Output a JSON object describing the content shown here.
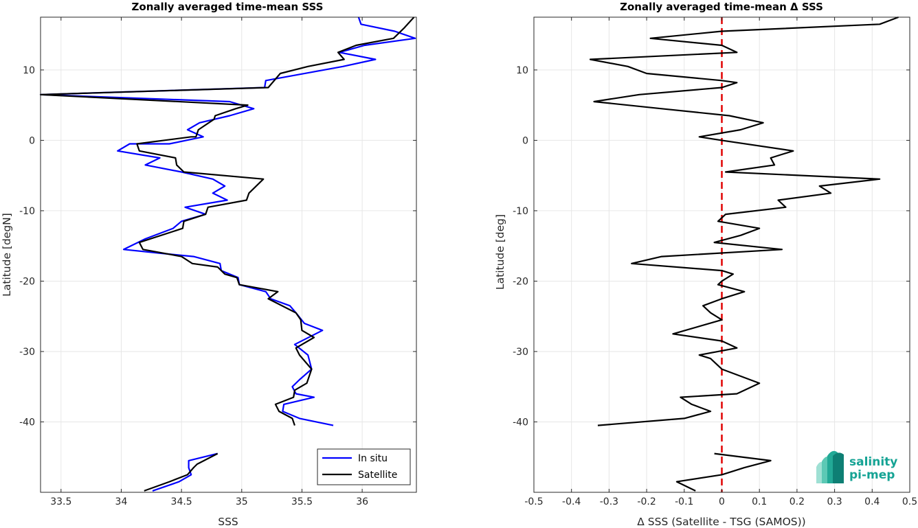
{
  "chart_data": [
    {
      "type": "line",
      "title": "Zonally averaged time-mean SSS",
      "xlabel": "SSS",
      "ylabel": "Latitude [degN]",
      "xlim": [
        33.33,
        36.45
      ],
      "ylim": [
        -50,
        17.5
      ],
      "xticks": [
        33.5,
        34,
        34.5,
        35,
        35.5,
        36
      ],
      "yticks": [
        10,
        0,
        -10,
        -20,
        -30,
        -40
      ],
      "grid": true,
      "legend": "bottom-right",
      "series": [
        {
          "name": "In situ",
          "color": "#0000ff",
          "segments": [
            [
              [
                35.97,
                17.5
              ],
              [
                35.99,
                16.5
              ],
              [
                36.27,
                15.5
              ],
              [
                36.44,
                14.5
              ],
              [
                36.02,
                13.5
              ],
              [
                35.81,
                12.5
              ],
              [
                36.11,
                11.5
              ],
              [
                35.84,
                10.5
              ],
              [
                35.2,
                8.5
              ],
              [
                35.19,
                7.5
              ],
              [
                33.33,
                6.5
              ],
              [
                34.9,
                5.5
              ],
              [
                35.1,
                4.5
              ],
              [
                34.9,
                3.5
              ],
              [
                34.65,
                2.5
              ],
              [
                34.55,
                1.5
              ],
              [
                34.68,
                0.5
              ],
              [
                34.4,
                -0.5
              ],
              [
                34.07,
                -0.5
              ],
              [
                33.97,
                -1.5
              ],
              [
                34.32,
                -2.5
              ],
              [
                34.2,
                -3.5
              ],
              [
                34.5,
                -4.5
              ],
              [
                34.76,
                -5.5
              ],
              [
                34.86,
                -6.5
              ],
              [
                34.76,
                -7.5
              ],
              [
                34.88,
                -8.5
              ],
              [
                34.53,
                -9.5
              ],
              [
                34.7,
                -10.5
              ],
              [
                34.5,
                -11.5
              ],
              [
                34.43,
                -12.5
              ],
              [
                34.2,
                -14.0
              ],
              [
                34.02,
                -15.5
              ],
              [
                34.3,
                -16.0
              ],
              [
                34.6,
                -16.5
              ],
              [
                34.82,
                -17.5
              ],
              [
                34.83,
                -18.5
              ],
              [
                34.97,
                -19.5
              ],
              [
                34.98,
                -20.5
              ],
              [
                35.2,
                -21.5
              ],
              [
                35.24,
                -22.5
              ],
              [
                35.4,
                -23.5
              ],
              [
                35.45,
                -24.5
              ],
              [
                35.52,
                -26.0
              ],
              [
                35.67,
                -27.0
              ],
              [
                35.44,
                -29.0
              ],
              [
                35.55,
                -30.5
              ],
              [
                35.58,
                -32.5
              ],
              [
                35.48,
                -34.0
              ],
              [
                35.42,
                -35.0
              ],
              [
                35.45,
                -36.0
              ],
              [
                35.6,
                -36.5
              ],
              [
                35.35,
                -37.5
              ],
              [
                35.34,
                -38.5
              ],
              [
                35.48,
                -39.5
              ],
              [
                35.76,
                -40.5
              ]
            ],
            [
              [
                34.8,
                -44.5
              ],
              [
                34.56,
                -45.5
              ],
              [
                34.56,
                -46.5
              ],
              [
                34.58,
                -47.5
              ],
              [
                34.48,
                -48.5
              ],
              [
                34.26,
                -49.8
              ]
            ]
          ]
        },
        {
          "name": "Satellite",
          "color": "#000000",
          "segments": [
            [
              [
                36.43,
                17.5
              ],
              [
                36.35,
                16.0
              ],
              [
                36.26,
                14.5
              ],
              [
                35.95,
                13.5
              ],
              [
                35.8,
                12.5
              ],
              [
                35.85,
                11.5
              ],
              [
                35.55,
                10.5
              ],
              [
                35.32,
                9.5
              ],
              [
                35.22,
                7.5
              ],
              [
                33.33,
                6.5
              ],
              [
                35.05,
                5.0
              ],
              [
                34.95,
                4.5
              ],
              [
                34.78,
                3.5
              ],
              [
                34.77,
                3.0
              ],
              [
                34.64,
                1.5
              ],
              [
                34.62,
                0.5
              ],
              [
                34.58,
                0.5
              ],
              [
                34.13,
                -0.5
              ],
              [
                34.15,
                -1.5
              ],
              [
                34.45,
                -2.5
              ],
              [
                34.46,
                -3.5
              ],
              [
                34.52,
                -4.5
              ],
              [
                35.18,
                -5.5
              ],
              [
                35.06,
                -7.5
              ],
              [
                35.04,
                -8.5
              ],
              [
                34.72,
                -9.5
              ],
              [
                34.7,
                -10.5
              ],
              [
                34.52,
                -11.5
              ],
              [
                34.51,
                -12.5
              ],
              [
                34.15,
                -14.5
              ],
              [
                34.18,
                -15.5
              ],
              [
                34.5,
                -16.5
              ],
              [
                34.59,
                -17.5
              ],
              [
                34.8,
                -18.0
              ],
              [
                34.86,
                -19.0
              ],
              [
                34.96,
                -19.5
              ],
              [
                34.98,
                -20.5
              ],
              [
                35.3,
                -21.5
              ],
              [
                35.22,
                -22.5
              ],
              [
                35.45,
                -24.5
              ],
              [
                35.49,
                -25.5
              ],
              [
                35.5,
                -27.0
              ],
              [
                35.6,
                -28.0
              ],
              [
                35.45,
                -29.5
              ],
              [
                35.48,
                -30.5
              ],
              [
                35.58,
                -32.5
              ],
              [
                35.54,
                -34.5
              ],
              [
                35.44,
                -35.5
              ],
              [
                35.43,
                -36.5
              ],
              [
                35.28,
                -37.5
              ],
              [
                35.31,
                -38.5
              ],
              [
                35.42,
                -39.5
              ],
              [
                35.44,
                -40.5
              ]
            ],
            [
              [
                34.8,
                -44.5
              ],
              [
                34.63,
                -46.0
              ],
              [
                34.6,
                -46.5
              ],
              [
                34.55,
                -47.5
              ],
              [
                34.4,
                -48.5
              ],
              [
                34.19,
                -49.8
              ]
            ]
          ]
        }
      ]
    },
    {
      "type": "line",
      "title": "Zonally averaged time-mean Δ SSS",
      "xlabel": "Δ SSS (Satellite - TSG (SAMOS))",
      "ylabel": "Latitude [deg]",
      "xlim": [
        -0.5,
        0.5
      ],
      "ylim": [
        -50,
        17.5
      ],
      "xticks": [
        -0.5,
        -0.4,
        -0.3,
        -0.2,
        -0.1,
        0,
        0.1,
        0.2,
        0.3,
        0.4,
        0.5
      ],
      "xticklabels": [
        "-0.5",
        "-0.4",
        "-0.3",
        "-0.2",
        "-0.1",
        "0",
        "0.1",
        "0.2",
        "0.3",
        "0.4",
        "0.5"
      ],
      "yticks": [
        10,
        0,
        -10,
        -20,
        -30,
        -40
      ],
      "grid": true,
      "reference_line": {
        "x": 0,
        "color": "#e00000",
        "style": "dashed"
      },
      "series": [
        {
          "name": "",
          "color": "#000000",
          "segments": [
            [
              [
                0.47,
                17.5
              ],
              [
                0.42,
                16.5
              ],
              [
                0.0,
                15.5
              ],
              [
                -0.19,
                14.5
              ],
              [
                0.0,
                13.5
              ],
              [
                0.04,
                12.5
              ],
              [
                -0.35,
                11.5
              ],
              [
                -0.25,
                10.5
              ],
              [
                -0.2,
                9.5
              ],
              [
                0.0,
                8.5
              ],
              [
                0.04,
                8.2
              ],
              [
                0.0,
                7.5
              ],
              [
                -0.22,
                6.5
              ],
              [
                -0.34,
                5.5
              ],
              [
                -0.16,
                4.5
              ],
              [
                0.02,
                3.5
              ],
              [
                0.11,
                2.5
              ],
              [
                0.05,
                1.5
              ],
              [
                -0.06,
                0.5
              ],
              [
                0.0,
                0.0
              ],
              [
                0.19,
                -1.5
              ],
              [
                0.13,
                -2.5
              ],
              [
                0.14,
                -3.5
              ],
              [
                0.01,
                -4.5
              ],
              [
                0.42,
                -5.5
              ],
              [
                0.26,
                -6.5
              ],
              [
                0.29,
                -7.5
              ],
              [
                0.15,
                -8.5
              ],
              [
                0.17,
                -9.5
              ],
              [
                0.01,
                -10.5
              ],
              [
                -0.01,
                -11.5
              ],
              [
                0.1,
                -12.5
              ],
              [
                0.05,
                -13.5
              ],
              [
                -0.02,
                -14.5
              ],
              [
                0.16,
                -15.5
              ],
              [
                -0.16,
                -16.5
              ],
              [
                -0.24,
                -17.5
              ],
              [
                0.0,
                -18.5
              ],
              [
                0.03,
                -19.0
              ],
              [
                0.0,
                -20.0
              ],
              [
                -0.01,
                -20.5
              ],
              [
                0.06,
                -21.5
              ],
              [
                0.0,
                -22.5
              ],
              [
                -0.05,
                -23.5
              ],
              [
                -0.03,
                -24.5
              ],
              [
                0.0,
                -25.5
              ],
              [
                -0.13,
                -27.5
              ],
              [
                0.0,
                -28.5
              ],
              [
                0.04,
                -29.5
              ],
              [
                -0.06,
                -30.5
              ],
              [
                -0.03,
                -31.0
              ],
              [
                0.0,
                -32.5
              ],
              [
                0.1,
                -34.5
              ],
              [
                0.04,
                -36.0
              ],
              [
                -0.11,
                -36.5
              ],
              [
                -0.08,
                -37.5
              ],
              [
                -0.03,
                -38.5
              ],
              [
                -0.1,
                -39.5
              ],
              [
                -0.33,
                -40.5
              ]
            ],
            [
              [
                -0.02,
                -44.5
              ],
              [
                0.13,
                -45.5
              ],
              [
                0.06,
                -46.5
              ],
              [
                0.0,
                -47.5
              ],
              [
                -0.12,
                -48.5
              ],
              [
                -0.07,
                -49.8
              ]
            ]
          ]
        }
      ]
    }
  ],
  "logo": {
    "name": "salinity-pi-mep-logo",
    "line1": "salinity",
    "line2": "pi-mep",
    "color": "#15a394"
  }
}
